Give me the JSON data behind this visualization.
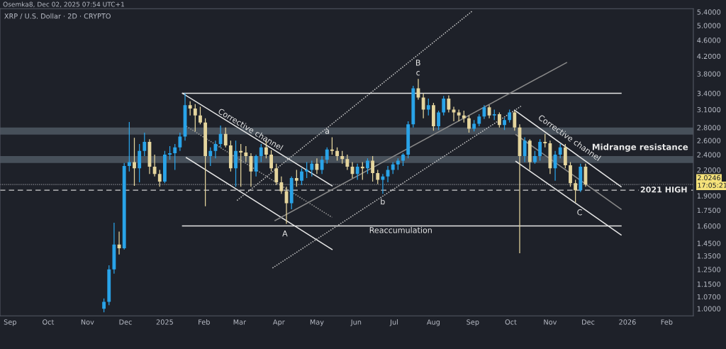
{
  "chart_data": {
    "type": "candlestick",
    "title": "XRP / U.S. Dollar · 2D · CRYPTO",
    "x": [
      "2024-11-14",
      "2024-11-18",
      "2024-11-22",
      "2024-11-26",
      "2024-11-30",
      "2024-12-04",
      "2024-12-08",
      "2024-12-12",
      "2024-12-16",
      "2024-12-20",
      "2024-12-24",
      "2024-12-28",
      "2025-01-01",
      "2025-01-05",
      "2025-01-09",
      "2025-01-13",
      "2025-01-17",
      "2025-01-21",
      "2025-01-25",
      "2025-01-29",
      "2025-02-02",
      "2025-02-06",
      "2025-02-10",
      "2025-02-14",
      "2025-02-18",
      "2025-02-22",
      "2025-02-26",
      "2025-03-02",
      "2025-03-06",
      "2025-03-10",
      "2025-03-14",
      "2025-03-18",
      "2025-03-22",
      "2025-03-26",
      "2025-03-30",
      "2025-04-03",
      "2025-04-07",
      "2025-04-11",
      "2025-04-15",
      "2025-04-19",
      "2025-04-23",
      "2025-04-27",
      "2025-05-01",
      "2025-05-05",
      "2025-05-09",
      "2025-05-13",
      "2025-05-17",
      "2025-05-21",
      "2025-05-25",
      "2025-05-29",
      "2025-06-02",
      "2025-06-06",
      "2025-06-10",
      "2025-06-14",
      "2025-06-18",
      "2025-06-22",
      "2025-06-26",
      "2025-06-30",
      "2025-07-04",
      "2025-07-08",
      "2025-07-12",
      "2025-07-16",
      "2025-07-20",
      "2025-07-24",
      "2025-07-28",
      "2025-08-01",
      "2025-08-05",
      "2025-08-09",
      "2025-08-13",
      "2025-08-17",
      "2025-08-21",
      "2025-08-25",
      "2025-08-29",
      "2025-09-02",
      "2025-09-06",
      "2025-09-10",
      "2025-09-14",
      "2025-09-18",
      "2025-09-22",
      "2025-09-26",
      "2025-09-30",
      "2025-10-04",
      "2025-10-08",
      "2025-10-12",
      "2025-10-16",
      "2025-10-20",
      "2025-10-24",
      "2025-10-28",
      "2025-11-01",
      "2025-11-05",
      "2025-11-09",
      "2025-11-13",
      "2025-11-17",
      "2025-11-21",
      "2025-11-25",
      "2025-11-29"
    ],
    "ohlc": [
      [
        1.0,
        1.06,
        0.98,
        1.04
      ],
      [
        1.04,
        1.28,
        1.02,
        1.25
      ],
      [
        1.25,
        1.63,
        1.22,
        1.44
      ],
      [
        1.44,
        1.55,
        1.36,
        1.41
      ],
      [
        1.41,
        2.29,
        1.4,
        2.25
      ],
      [
        2.25,
        2.89,
        2.18,
        2.3
      ],
      [
        2.3,
        2.64,
        2.01,
        2.22
      ],
      [
        2.22,
        2.55,
        2.05,
        2.45
      ],
      [
        2.45,
        2.72,
        2.38,
        2.58
      ],
      [
        2.58,
        2.62,
        2.15,
        2.24
      ],
      [
        2.24,
        2.4,
        2.12,
        2.15
      ],
      [
        2.15,
        2.2,
        2.0,
        2.06
      ],
      [
        2.06,
        2.45,
        2.04,
        2.4
      ],
      [
        2.4,
        2.52,
        2.33,
        2.42
      ],
      [
        2.42,
        2.55,
        2.2,
        2.5
      ],
      [
        2.5,
        2.72,
        2.45,
        2.66
      ],
      [
        2.66,
        3.4,
        2.6,
        3.18
      ],
      [
        3.18,
        3.25,
        3.0,
        3.12
      ],
      [
        3.12,
        3.2,
        2.74,
        3.0
      ],
      [
        3.0,
        3.15,
        2.85,
        2.88
      ],
      [
        2.88,
        2.95,
        1.79,
        2.38
      ],
      [
        2.38,
        2.5,
        2.25,
        2.45
      ],
      [
        2.45,
        2.6,
        2.35,
        2.55
      ],
      [
        2.55,
        2.83,
        2.5,
        2.7
      ],
      [
        2.7,
        2.8,
        2.5,
        2.53
      ],
      [
        2.53,
        2.6,
        2.18,
        2.22
      ],
      [
        2.22,
        2.6,
        2.0,
        2.45
      ],
      [
        2.45,
        2.55,
        2.0,
        2.43
      ],
      [
        2.43,
        2.52,
        2.3,
        2.38
      ],
      [
        2.38,
        2.42,
        2.0,
        2.18
      ],
      [
        2.18,
        2.4,
        2.12,
        2.38
      ],
      [
        2.38,
        2.55,
        2.3,
        2.5
      ],
      [
        2.5,
        2.6,
        2.35,
        2.4
      ],
      [
        2.4,
        2.46,
        2.18,
        2.22
      ],
      [
        2.22,
        2.28,
        2.02,
        2.05
      ],
      [
        2.05,
        2.12,
        1.92,
        1.95
      ],
      [
        1.95,
        2.0,
        1.62,
        1.82
      ],
      [
        1.82,
        2.12,
        1.76,
        2.1
      ],
      [
        2.1,
        2.2,
        2.0,
        2.07
      ],
      [
        2.07,
        2.22,
        2.02,
        2.18
      ],
      [
        2.18,
        2.3,
        2.1,
        2.2
      ],
      [
        2.2,
        2.32,
        2.12,
        2.28
      ],
      [
        2.28,
        2.35,
        2.15,
        2.2
      ],
      [
        2.2,
        2.38,
        2.15,
        2.33
      ],
      [
        2.33,
        2.5,
        2.28,
        2.47
      ],
      [
        2.47,
        2.65,
        2.4,
        2.45
      ],
      [
        2.45,
        2.5,
        2.32,
        2.38
      ],
      [
        2.38,
        2.45,
        2.28,
        2.34
      ],
      [
        2.34,
        2.4,
        2.2,
        2.24
      ],
      [
        2.24,
        2.3,
        2.1,
        2.15
      ],
      [
        2.15,
        2.28,
        2.08,
        2.24
      ],
      [
        2.24,
        2.3,
        2.08,
        2.22
      ],
      [
        2.22,
        2.35,
        2.15,
        2.32
      ],
      [
        2.32,
        2.38,
        2.06,
        2.16
      ],
      [
        2.16,
        2.2,
        2.03,
        2.08
      ],
      [
        2.08,
        2.15,
        1.92,
        2.12
      ],
      [
        2.12,
        2.25,
        2.05,
        2.2
      ],
      [
        2.2,
        2.3,
        2.15,
        2.27
      ],
      [
        2.27,
        2.35,
        2.2,
        2.32
      ],
      [
        2.32,
        2.42,
        2.25,
        2.4
      ],
      [
        2.4,
        2.9,
        2.35,
        2.85
      ],
      [
        2.85,
        3.55,
        2.8,
        3.5
      ],
      [
        3.5,
        3.69,
        3.28,
        3.32
      ],
      [
        3.32,
        3.4,
        2.95,
        3.1
      ],
      [
        3.1,
        3.3,
        3.0,
        3.18
      ],
      [
        3.18,
        3.22,
        2.75,
        2.82
      ],
      [
        2.82,
        3.08,
        2.76,
        3.05
      ],
      [
        3.05,
        3.35,
        3.0,
        3.3
      ],
      [
        3.3,
        3.36,
        3.05,
        3.1
      ],
      [
        3.1,
        3.15,
        2.9,
        3.05
      ],
      [
        3.05,
        3.1,
        2.9,
        3.0
      ],
      [
        3.0,
        3.08,
        2.88,
        2.95
      ],
      [
        2.95,
        3.0,
        2.72,
        2.78
      ],
      [
        2.78,
        2.92,
        2.74,
        2.86
      ],
      [
        2.86,
        3.02,
        2.82,
        2.98
      ],
      [
        2.98,
        3.18,
        2.94,
        3.14
      ],
      [
        3.14,
        3.18,
        2.95,
        3.0
      ],
      [
        3.0,
        3.1,
        2.92,
        3.02
      ],
      [
        3.02,
        3.05,
        2.8,
        2.84
      ],
      [
        2.84,
        2.96,
        2.76,
        2.92
      ],
      [
        2.92,
        3.1,
        2.88,
        3.05
      ],
      [
        3.05,
        3.08,
        2.75,
        2.8
      ],
      [
        2.8,
        2.85,
        1.37,
        2.38
      ],
      [
        2.38,
        2.65,
        2.3,
        2.6
      ],
      [
        2.6,
        2.62,
        2.2,
        2.3
      ],
      [
        2.3,
        2.45,
        2.28,
        2.38
      ],
      [
        2.38,
        2.62,
        2.32,
        2.58
      ],
      [
        2.58,
        2.7,
        2.5,
        2.56
      ],
      [
        2.56,
        2.6,
        2.15,
        2.22
      ],
      [
        2.22,
        2.45,
        2.07,
        2.4
      ],
      [
        2.4,
        2.55,
        2.35,
        2.5
      ],
      [
        2.5,
        2.55,
        2.22,
        2.26
      ],
      [
        2.26,
        2.3,
        2.0,
        2.04
      ],
      [
        2.04,
        2.08,
        1.83,
        1.96
      ],
      [
        1.96,
        2.28,
        1.94,
        2.24
      ],
      [
        2.24,
        2.28,
        2.0,
        2.0246
      ]
    ],
    "colors": [
      "#29a3e8",
      "#29a3e8",
      "#29a3e8",
      "#e5d59d",
      "#29a3e8",
      "#29a3e8",
      "#e5d59d",
      "#29a3e8",
      "#29a3e8",
      "#e5d59d",
      "#e5d59d",
      "#e5d59d",
      "#29a3e8",
      "#29a3e8",
      "#29a3e8",
      "#29a3e8",
      "#29a3e8",
      "#e5d59d",
      "#e5d59d",
      "#e5d59d",
      "#e5d59d",
      "#29a3e8",
      "#29a3e8",
      "#29a3e8",
      "#e5d59d",
      "#e5d59d",
      "#29a3e8",
      "#e5d59d",
      "#e5d59d",
      "#e5d59d",
      "#29a3e8",
      "#29a3e8",
      "#e5d59d",
      "#e5d59d",
      "#e5d59d",
      "#e5d59d",
      "#e5d59d",
      "#29a3e8",
      "#e5d59d",
      "#29a3e8",
      "#29a3e8",
      "#29a3e8",
      "#e5d59d",
      "#29a3e8",
      "#29a3e8",
      "#e5d59d",
      "#e5d59d",
      "#e5d59d",
      "#e5d59d",
      "#e5d59d",
      "#29a3e8",
      "#e5d59d",
      "#29a3e8",
      "#e5d59d",
      "#e5d59d",
      "#29a3e8",
      "#29a3e8",
      "#29a3e8",
      "#29a3e8",
      "#29a3e8",
      "#29a3e8",
      "#29a3e8",
      "#e5d59d",
      "#e5d59d",
      "#29a3e8",
      "#e5d59d",
      "#29a3e8",
      "#29a3e8",
      "#e5d59d",
      "#e5d59d",
      "#e5d59d",
      "#e5d59d",
      "#e5d59d",
      "#29a3e8",
      "#29a3e8",
      "#29a3e8",
      "#e5d59d",
      "#29a3e8",
      "#e5d59d",
      "#29a3e8",
      "#29a3e8",
      "#e5d59d",
      "#e5d59d",
      "#29a3e8",
      "#e5d59d",
      "#29a3e8",
      "#29a3e8",
      "#e5d59d",
      "#e5d59d",
      "#29a3e8",
      "#29a3e8",
      "#e5d59d",
      "#e5d59d",
      "#e5d59d",
      "#29a3e8",
      "#e5d59d"
    ],
    "series": [
      {
        "type": "line",
        "x": [
          "2025-01-15",
          "2025-12-27"
        ],
        "values": [
          3.4,
          3.4
        ],
        "color": "#e6e6e6",
        "line_style": "solid"
      },
      {
        "type": "line",
        "x": [
          "2025-01-15",
          "2025-12-27"
        ],
        "values": [
          1.6,
          1.6
        ],
        "color": "#e6e6e6",
        "line_style": "solid"
      },
      {
        "type": "line",
        "x": [
          "2025-01-15",
          "2025-05-13"
        ],
        "values": [
          3.4,
          2.01
        ],
        "color": "#e6e6e6",
        "line_style": "solid"
      },
      {
        "type": "line",
        "x": [
          "2025-01-18",
          "2025-05-13"
        ],
        "values": [
          2.36,
          1.4
        ],
        "color": "#e6e6e6",
        "line_style": "solid"
      },
      {
        "type": "line",
        "x": [
          "2025-01-18",
          "2025-05-13"
        ],
        "values": [
          2.82,
          1.68
        ],
        "color": "#9a9a9a",
        "line_style": "dotted"
      },
      {
        "type": "line",
        "x": [
          "2025-02-27",
          "2025-09-01"
        ],
        "values": [
          1.85,
          5.44
        ],
        "color": "#c8c8c8",
        "line_style": "dotted"
      },
      {
        "type": "line",
        "x": [
          "2025-03-27",
          "2025-10-09"
        ],
        "values": [
          1.26,
          3.16
        ],
        "color": "#c8c8c8",
        "line_style": "dotted"
      },
      {
        "type": "line",
        "x": [
          "2025-03-29",
          "2025-11-14"
        ],
        "values": [
          1.65,
          4.05
        ],
        "color": "#8a8a8a",
        "line_style": "solid"
      },
      {
        "type": "line",
        "x": [
          "2025-10-04",
          "2025-12-27"
        ],
        "values": [
          3.09,
          2.0
        ],
        "color": "#e6e6e6",
        "line_style": "solid"
      },
      {
        "type": "line",
        "x": [
          "2025-10-05",
          "2025-12-27"
        ],
        "values": [
          2.31,
          1.52
        ],
        "color": "#e6e6e6",
        "line_style": "solid"
      },
      {
        "type": "line",
        "x": [
          "2025-10-05",
          "2025-12-27"
        ],
        "values": [
          2.69,
          1.76
        ],
        "color": "#8a8a8a",
        "line_style": "solid"
      }
    ],
    "bands": [
      {
        "axis": "y",
        "from": 2.29,
        "to": 2.38,
        "label": "Midrange resistance",
        "color": "#56606b"
      },
      {
        "axis": "y",
        "from": 2.69,
        "to": 2.8,
        "color": "#56606b"
      }
    ],
    "ref_lines": [
      {
        "axis": "y",
        "value": 1.96,
        "label": "2021 HIGH",
        "color": "#d0d0d0",
        "line_style": "dashed"
      },
      {
        "axis": "y",
        "value": 2.0246,
        "label": "2.0246",
        "color": "#8d8f96",
        "line_style": "dotted"
      }
    ],
    "annotations": [
      "Osemka8, Dec 02, 2025 07:54 UTC+1",
      "17:05:21",
      "A",
      "a",
      "B",
      "c",
      "b",
      "C",
      "Corrective channel",
      "Corrective channel",
      "Reaccumulation"
    ],
    "xlim": [
      "2024-08-24",
      "2026-02-22"
    ],
    "xticks": [
      {
        "value": "2024-09-01",
        "label": "Sep"
      },
      {
        "value": "2024-10-01",
        "label": "Oct"
      },
      {
        "value": "2024-11-01",
        "label": "Nov"
      },
      {
        "value": "2024-12-01",
        "label": "Dec"
      },
      {
        "value": "2025-01-01",
        "label": "2025"
      },
      {
        "value": "2025-02-01",
        "label": "Feb"
      },
      {
        "value": "2025-03-01",
        "label": "Mar"
      },
      {
        "value": "2025-04-01",
        "label": "Apr"
      },
      {
        "value": "2025-05-01",
        "label": "May"
      },
      {
        "value": "2025-06-01",
        "label": "Jun"
      },
      {
        "value": "2025-07-01",
        "label": "Jul"
      },
      {
        "value": "2025-08-01",
        "label": "Aug"
      },
      {
        "value": "2025-09-01",
        "label": "Sep"
      },
      {
        "value": "2025-10-01",
        "label": "Oct"
      },
      {
        "value": "2025-11-01",
        "label": "Nov"
      },
      {
        "value": "2025-12-01",
        "label": "Dec"
      },
      {
        "value": "2026-01-01",
        "label": "2026"
      },
      {
        "value": "2026-02-01",
        "label": "Feb"
      }
    ],
    "log": true,
    "ylim": [
      0.96,
      5.5
    ],
    "yticks": [
      {
        "value": 1.0,
        "label": "1.0000"
      },
      {
        "value": 1.07,
        "label": "1.0700"
      },
      {
        "value": 1.15,
        "label": "1.1500"
      },
      {
        "value": 1.25,
        "label": "1.2500"
      },
      {
        "value": 1.35,
        "label": "1.3500"
      },
      {
        "value": 1.45,
        "label": "1.4500"
      },
      {
        "value": 1.6,
        "label": "1.6000"
      },
      {
        "value": 1.75,
        "label": "1.7500"
      },
      {
        "value": 1.9,
        "label": "1.9000"
      },
      {
        "value": 2.2,
        "label": "2.2000"
      },
      {
        "value": 2.4,
        "label": "2.4000"
      },
      {
        "value": 2.6,
        "label": "2.6000"
      },
      {
        "value": 2.8,
        "label": "2.8000"
      },
      {
        "value": 3.1,
        "label": "3.1000"
      },
      {
        "value": 3.4,
        "label": "3.4000"
      },
      {
        "value": 3.8,
        "label": "3.8000"
      },
      {
        "value": 4.2,
        "label": "4.2000"
      },
      {
        "value": 4.6,
        "label": "4.6000"
      },
      {
        "value": 5.0,
        "label": "5.0000"
      },
      {
        "value": 5.4,
        "label": "5.4000"
      }
    ],
    "grid": false,
    "legend": false
  }
}
